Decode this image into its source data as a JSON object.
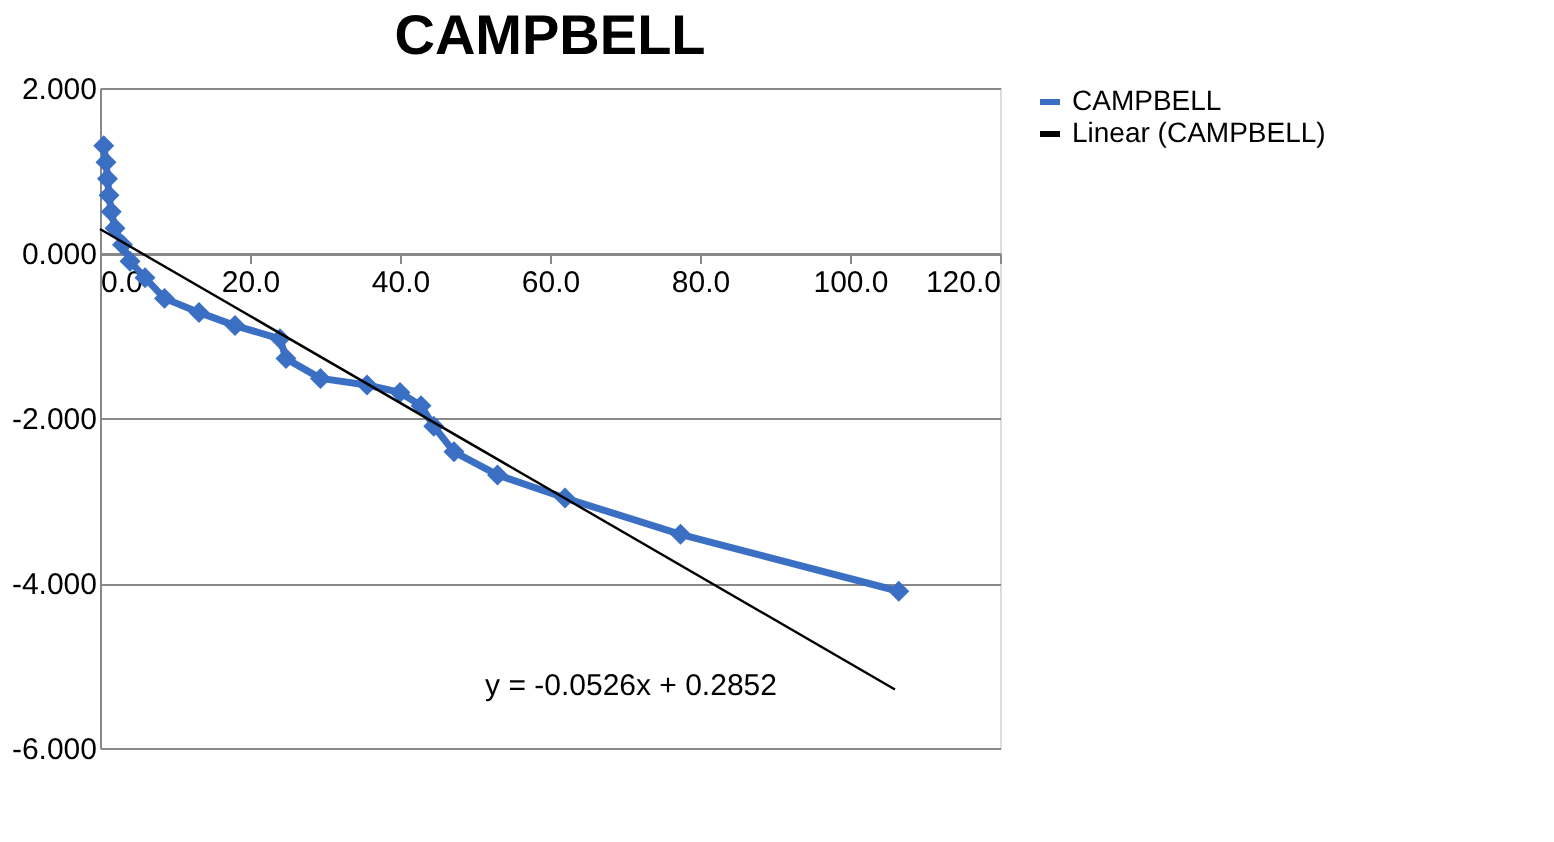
{
  "chart_data": {
    "type": "line",
    "title": "CAMPBELL",
    "series": [
      {
        "name": "CAMPBELL",
        "color": "#3a6fc4",
        "marker": "diamond",
        "x": [
          0.5,
          0.8,
          1.0,
          1.2,
          1.5,
          2.0,
          3.0,
          4.0,
          6.0,
          8.6,
          13.2,
          18.0,
          24.0,
          24.8,
          29.4,
          35.6,
          40.0,
          42.8,
          44.5,
          47.2,
          53.0,
          62.0,
          77.4,
          106.5
        ],
        "values": [
          1.3,
          1.1,
          0.9,
          0.7,
          0.5,
          0.3,
          0.1,
          -0.1,
          -0.3,
          -0.55,
          -0.72,
          -0.88,
          -1.04,
          -1.28,
          -1.52,
          -1.6,
          -1.69,
          -1.85,
          -2.1,
          -2.41,
          -2.69,
          -2.97,
          -3.41,
          -4.1
        ]
      },
      {
        "name": "Linear (CAMPBELL)",
        "color": "#000000",
        "marker": "none",
        "x": [
          0,
          106
        ],
        "values": [
          0.29,
          -5.29
        ]
      }
    ],
    "xlim": [
      0,
      120
    ],
    "xticks": [
      {
        "value": 0,
        "label": "0.0"
      },
      {
        "value": 20,
        "label": "20.0"
      },
      {
        "value": 40,
        "label": "40.0"
      },
      {
        "value": 60,
        "label": "60.0"
      },
      {
        "value": 80,
        "label": "80.0"
      },
      {
        "value": 100,
        "label": "100.0"
      },
      {
        "value": 120,
        "label": "120.0"
      }
    ],
    "ylim": [
      -6,
      2
    ],
    "yticks": [
      {
        "value": -6,
        "label": "-6.000"
      },
      {
        "value": -4,
        "label": "-4.000"
      },
      {
        "value": -2,
        "label": "-2.000"
      },
      {
        "value": 0,
        "label": "0.000"
      },
      {
        "value": 2,
        "label": "2.000"
      }
    ],
    "grid": "y",
    "legend": "right",
    "annotations": [
      "y = -0.0526x + 0.2852"
    ]
  }
}
